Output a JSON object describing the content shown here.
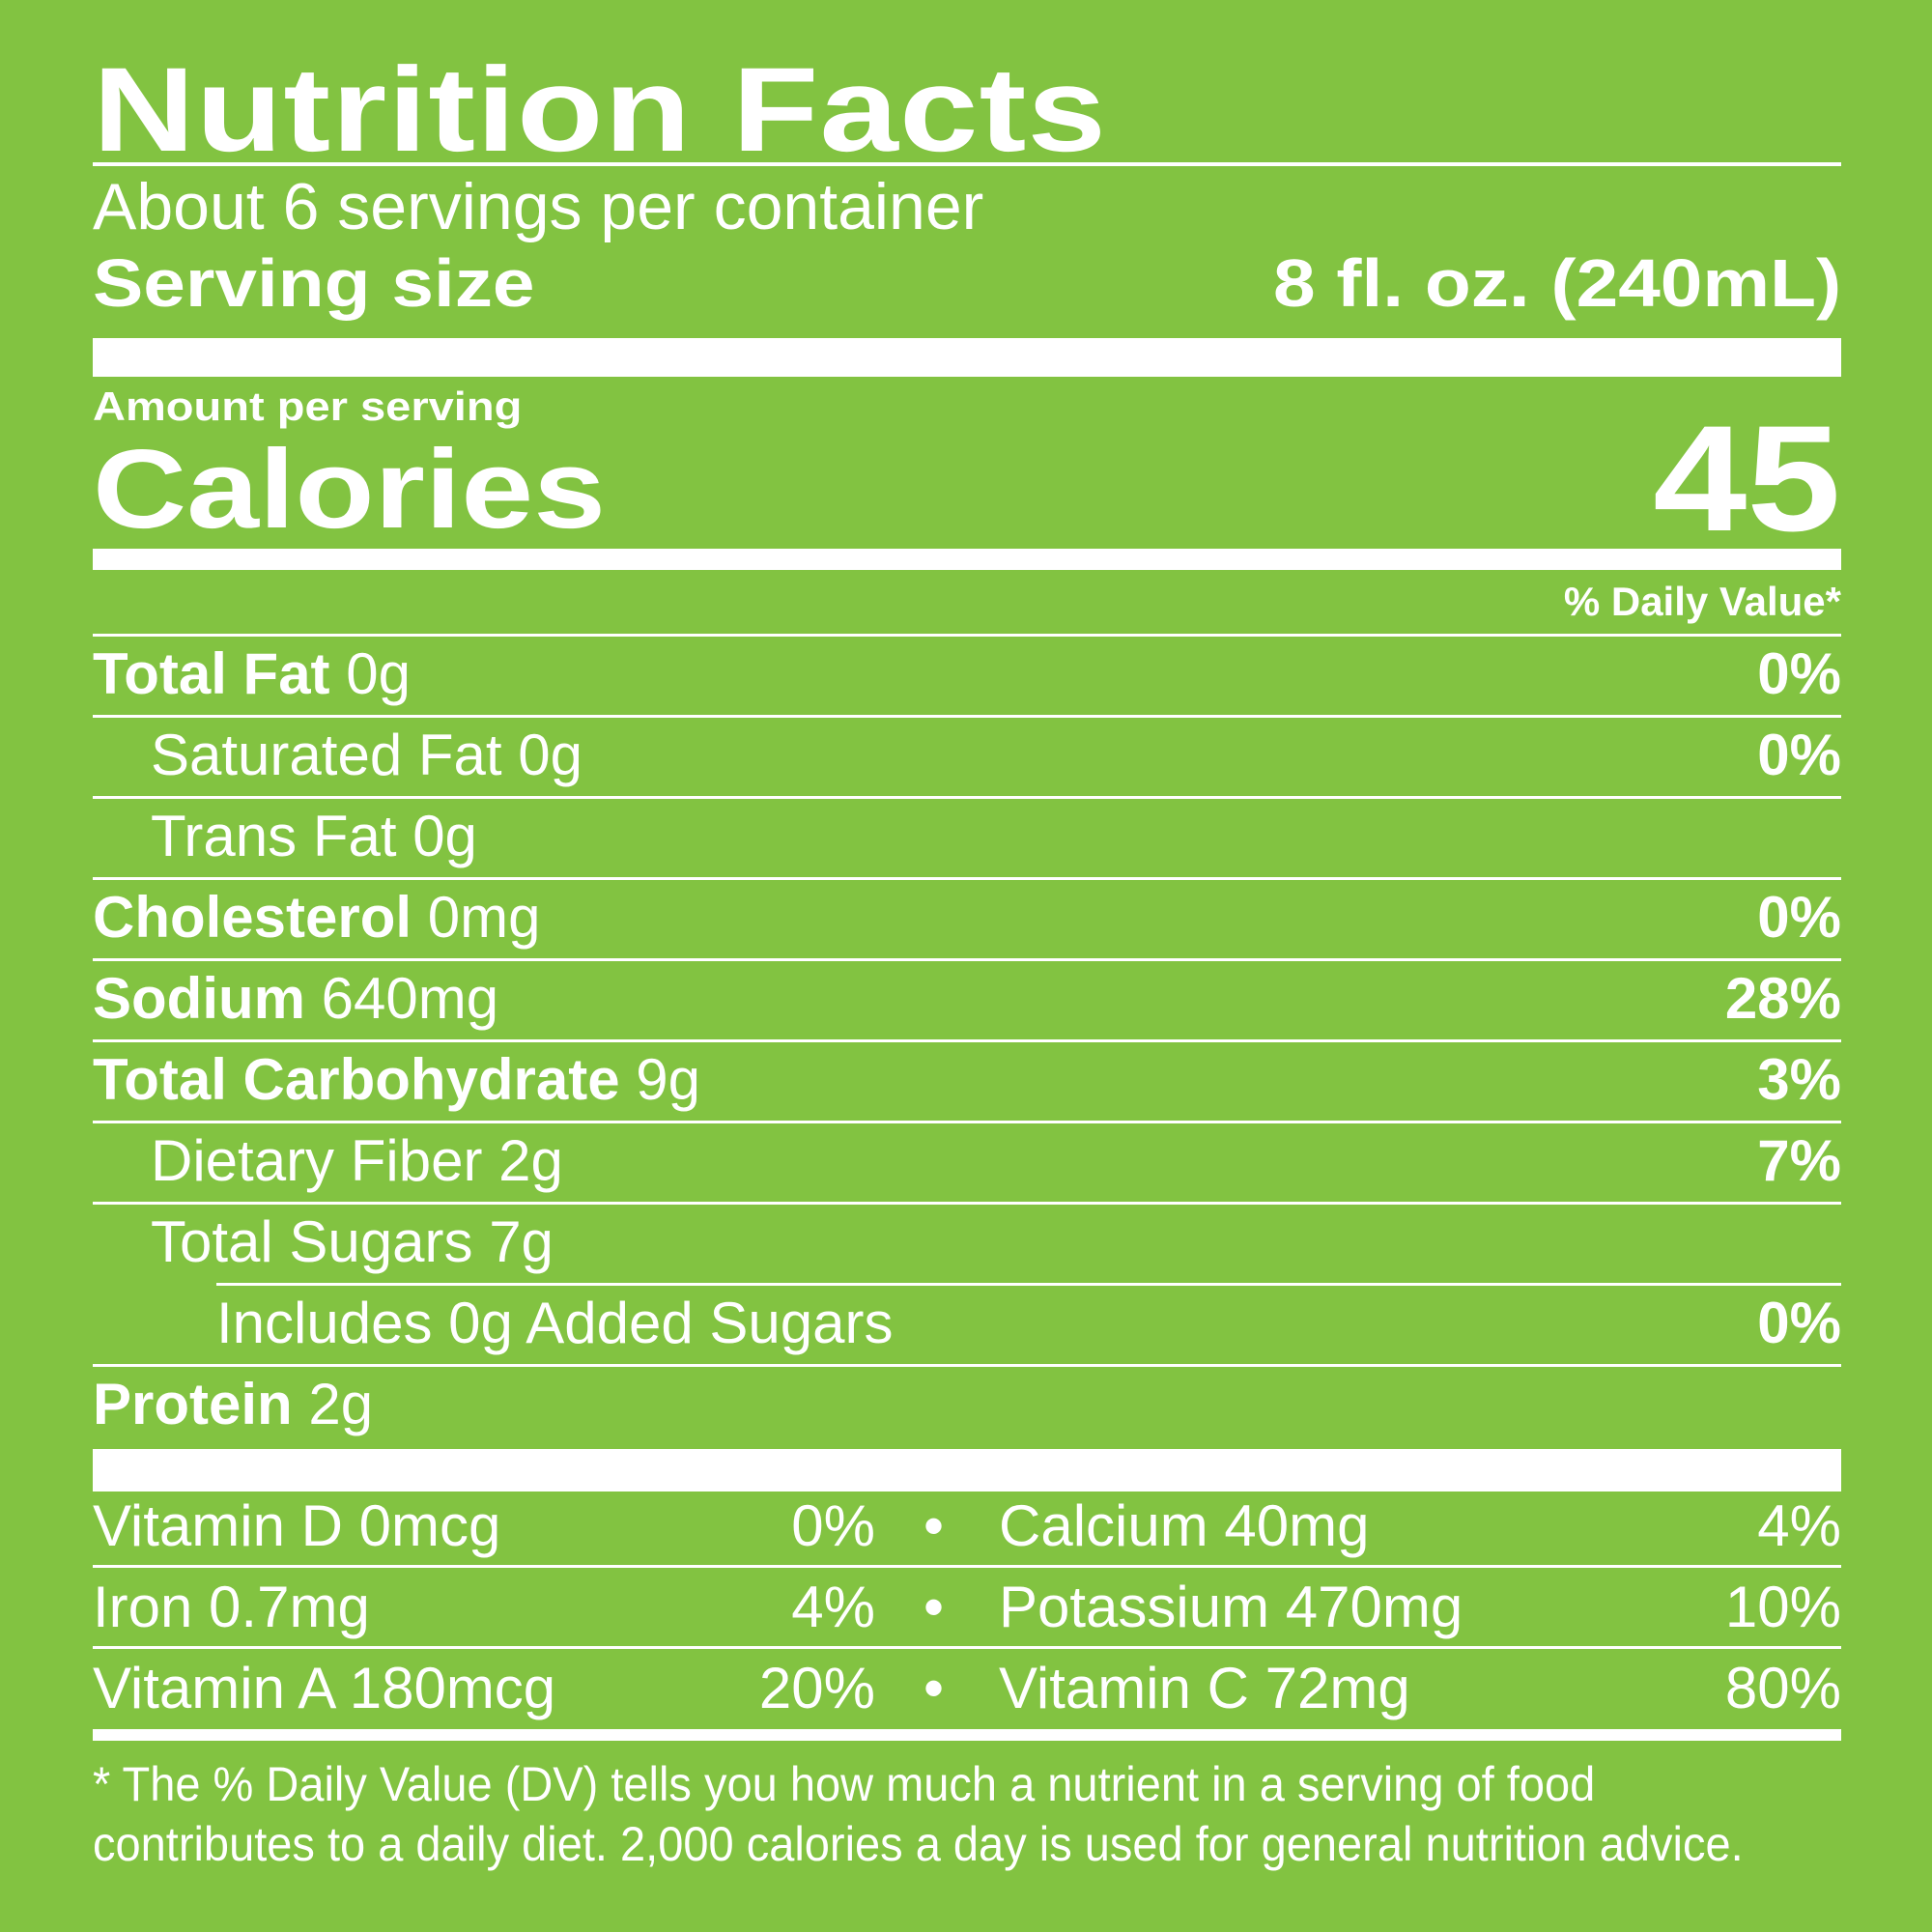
{
  "label": {
    "title": "Nutrition Facts",
    "servings_per_container": "About 6 servings per container",
    "serving_size_label": "Serving size",
    "serving_size_value": "8 fl. oz. (240mL)",
    "amount_per_serving": "Amount per serving",
    "calories_label": "Calories",
    "calories_value": "45",
    "daily_value_header": "% Daily Value*"
  },
  "nutrients": [
    {
      "name": "Total Fat",
      "amount": "0g",
      "dv": "0%",
      "bold": true
    },
    {
      "name": "Saturated Fat",
      "amount": "0g",
      "dv": "0%",
      "bold": false
    },
    {
      "name": "Trans Fat",
      "amount": "0g",
      "dv": "",
      "bold": false
    },
    {
      "name": "Cholesterol",
      "amount": "0mg",
      "dv": "0%",
      "bold": true
    },
    {
      "name": "Sodium",
      "amount": "640mg",
      "dv": "28%",
      "bold": true
    },
    {
      "name": "Total Carbohydrate",
      "amount": "9g",
      "dv": "3%",
      "bold": true
    },
    {
      "name": "Dietary Fiber",
      "amount": "2g",
      "dv": "7%",
      "bold": false
    },
    {
      "name": "Total Sugars",
      "amount": "7g",
      "dv": "",
      "bold": false
    },
    {
      "name": "Includes 0g Added Sugars",
      "amount": "",
      "dv": "0%",
      "bold": false
    },
    {
      "name": "Protein",
      "amount": "2g",
      "dv": "",
      "bold": true
    }
  ],
  "vitamins": [
    {
      "left_name": "Vitamin D 0mcg",
      "left_dv": "0%",
      "right_name": "Calcium 40mg",
      "right_dv": "4%"
    },
    {
      "left_name": "Iron 0.7mg",
      "left_dv": "4%",
      "right_name": "Potassium 470mg",
      "right_dv": "10%"
    },
    {
      "left_name": "Vitamin A 180mcg",
      "left_dv": "20%",
      "right_name": "Vitamin C 72mg",
      "right_dv": "80%"
    }
  ],
  "bullet": "•",
  "footnote": {
    "line1": "* The % Daily Value (DV) tells you how much a nutrient in a serving of food",
    "line2": "contributes to a daily diet. 2,000 calories a day is used for general nutrition advice."
  },
  "colors": {
    "background": "#82c341",
    "text": "#ffffff"
  }
}
